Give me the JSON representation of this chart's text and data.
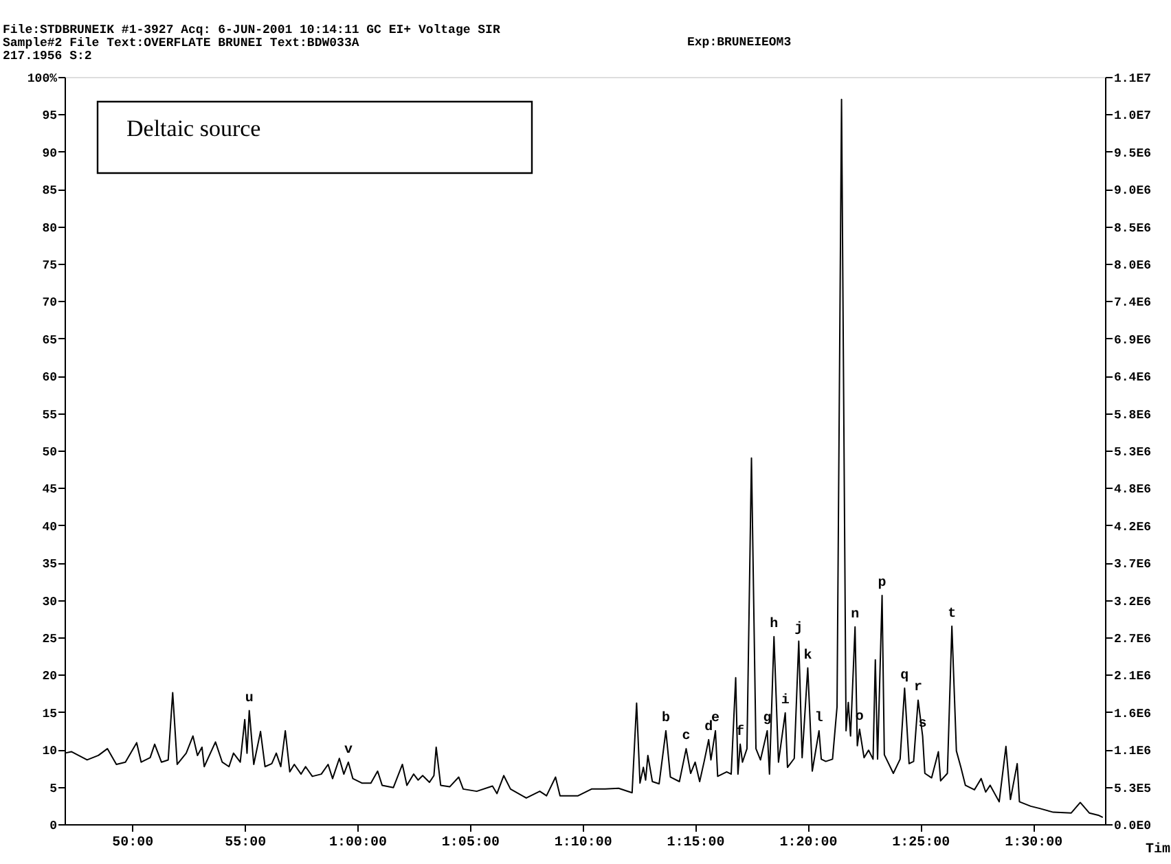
{
  "chart_data": {
    "type": "line",
    "title": "File:STDBRUNEIK #1-3927 Acq: 6-JUN-2001 10:14:11 GC EI+ Voltage SIR",
    "subtitle": "Sample#2 File Text:OVERFLATE BRUNEI Text:BDW033A",
    "xlabel": "Tim",
    "x": [
      47.0,
      47.3,
      48.0,
      48.5,
      48.9,
      49.3,
      49.7,
      50.2,
      50.4,
      50.8,
      51.0,
      51.3,
      51.6,
      51.8,
      52.0,
      52.4,
      52.7,
      52.9,
      53.1,
      53.2,
      53.7,
      54.0,
      54.3,
      54.5,
      54.8,
      55.0,
      55.1,
      55.2,
      55.4,
      55.7,
      55.9,
      56.2,
      56.4,
      56.6,
      56.8,
      57.0,
      57.2,
      57.5,
      57.7,
      58.0,
      58.4,
      58.7,
      58.9,
      59.2,
      59.4,
      59.6,
      59.8,
      60.2,
      60.6,
      60.9,
      61.1,
      61.6,
      62.0,
      62.2,
      62.5,
      62.7,
      62.9,
      63.2,
      63.4,
      63.5,
      63.7,
      64.1,
      64.5,
      64.7,
      65.3,
      66.0,
      66.2,
      66.5,
      66.8,
      67.5,
      68.1,
      68.4,
      68.8,
      69.0,
      69.8,
      70.4,
      71.0,
      71.6,
      72.2,
      72.4,
      72.55,
      72.7,
      72.8,
      72.9,
      73.1,
      73.4,
      73.7,
      73.9,
      74.3,
      74.6,
      74.8,
      75.0,
      75.2,
      75.4,
      75.6,
      75.7,
      75.9,
      76.0,
      76.4,
      76.6,
      76.8,
      76.9,
      77.0,
      77.1,
      77.3,
      77.5,
      77.7,
      77.9,
      78.2,
      78.3,
      78.5,
      78.7,
      79.0,
      79.1,
      79.4,
      79.6,
      79.75,
      80.0,
      80.2,
      80.5,
      80.6,
      80.8,
      81.1,
      81.3,
      81.5,
      81.7,
      81.8,
      81.9,
      82.1,
      82.2,
      82.3,
      82.5,
      82.7,
      82.9,
      83.0,
      83.1,
      83.3,
      83.4,
      83.8,
      84.1,
      84.3,
      84.5,
      84.7,
      84.9,
      85.1,
      85.2,
      85.5,
      85.8,
      85.9,
      86.2,
      86.4,
      86.6,
      86.8,
      87.0,
      87.4,
      87.7,
      87.9,
      88.1,
      88.5,
      88.8,
      89.0,
      89.3,
      89.4,
      89.9,
      90.3,
      90.9,
      91.7,
      92.1,
      92.5,
      92.9,
      93.1
    ],
    "series": [
      {
        "color": "#000000",
        "values": [
          9.5,
          9.7,
          8.6,
          9.2,
          10.1,
          8.0,
          8.3,
          10.9,
          8.3,
          8.9,
          10.7,
          8.3,
          8.6,
          17.6,
          8.0,
          9.5,
          11.8,
          9.2,
          10.3,
          7.7,
          11.0,
          8.3,
          7.7,
          9.5,
          8.3,
          14.0,
          9.5,
          15.2,
          8.0,
          12.4,
          7.7,
          8.1,
          9.5,
          7.7,
          12.5,
          7.0,
          8.0,
          6.7,
          7.7,
          6.4,
          6.7,
          8.0,
          6.1,
          8.8,
          6.7,
          8.3,
          6.1,
          5.5,
          5.5,
          7.1,
          5.2,
          4.9,
          8.0,
          5.2,
          6.7,
          5.9,
          6.5,
          5.6,
          6.5,
          10.3,
          5.2,
          5.0,
          6.3,
          4.7,
          4.4,
          5.1,
          4.1,
          6.5,
          4.7,
          3.5,
          4.4,
          3.8,
          6.3,
          3.8,
          3.8,
          4.7,
          4.7,
          4.8,
          4.2,
          16.2,
          5.5,
          7.6,
          5.9,
          9.2,
          5.7,
          5.4,
          12.5,
          6.3,
          5.7,
          10.1,
          6.8,
          8.3,
          5.7,
          8.4,
          11.3,
          8.6,
          12.5,
          6.4,
          7.0,
          6.7,
          19.6,
          6.7,
          10.7,
          8.3,
          10.1,
          49.0,
          10.1,
          8.6,
          12.5,
          6.7,
          25.1,
          8.3,
          14.9,
          7.6,
          8.8,
          24.5,
          8.9,
          20.9,
          7.1,
          12.5,
          8.7,
          8.4,
          8.7,
          15.7,
          97.0,
          12.5,
          16.3,
          11.8,
          26.4,
          10.5,
          12.7,
          8.9,
          9.9,
          8.7,
          22.0,
          8.7,
          30.6,
          9.3,
          6.8,
          8.7,
          18.2,
          8.1,
          8.4,
          16.6,
          11.8,
          6.8,
          6.2,
          9.7,
          5.8,
          6.8,
          26.5,
          9.8,
          7.6,
          5.2,
          4.6,
          6.1,
          4.3,
          5.2,
          3.0,
          10.4,
          3.3,
          8.1,
          3.0,
          2.4,
          2.1,
          1.6,
          1.5,
          2.9,
          1.5,
          1.2,
          0.9
        ]
      }
    ],
    "xlim": [
      47.0,
      93.2
    ],
    "xticks": [
      {
        "value": 50,
        "label": "50:00"
      },
      {
        "value": 55,
        "label": "55:00"
      },
      {
        "value": 60,
        "label": "1:00:00"
      },
      {
        "value": 65,
        "label": "1:05:00"
      },
      {
        "value": 70,
        "label": "1:10:00"
      },
      {
        "value": 75,
        "label": "1:15:00"
      },
      {
        "value": 80,
        "label": "1:20:00"
      },
      {
        "value": 85,
        "label": "1:25:00"
      },
      {
        "value": 90,
        "label": "1:30:00"
      }
    ],
    "ylim": [
      0,
      100
    ],
    "yticks": [
      0,
      5,
      10,
      15,
      20,
      25,
      30,
      35,
      40,
      45,
      50,
      55,
      60,
      65,
      70,
      75,
      80,
      85,
      90,
      95,
      {
        "value": 100,
        "label": "100%"
      }
    ],
    "y2lim": [
      0,
      10600000
    ],
    "y2ticks": [
      {
        "value": 0,
        "label": "0.0E0"
      },
      {
        "value": 530000,
        "label": "5.3E5"
      },
      {
        "value": 1060000,
        "label": "1.1E6"
      },
      {
        "value": 1590000,
        "label": "1.6E6"
      },
      {
        "value": 2120000,
        "label": "2.1E6"
      },
      {
        "value": 2650000,
        "label": "2.7E6"
      },
      {
        "value": 3180000,
        "label": "3.2E6"
      },
      {
        "value": 3710000,
        "label": "3.7E6"
      },
      {
        "value": 4240000,
        "label": "4.2E6"
      },
      {
        "value": 4770000,
        "label": "4.8E6"
      },
      {
        "value": 5300000,
        "label": "5.3E6"
      },
      {
        "value": 5830000,
        "label": "5.8E6"
      },
      {
        "value": 6360000,
        "label": "6.4E6"
      },
      {
        "value": 6890000,
        "label": "6.9E6"
      },
      {
        "value": 7420000,
        "label": "7.4E6"
      },
      {
        "value": 7950000,
        "label": "8.0E6"
      },
      {
        "value": 8480000,
        "label": "8.5E6"
      },
      {
        "value": 9010000,
        "label": "9.0E6"
      },
      {
        "value": 9540000,
        "label": "9.5E6"
      },
      {
        "value": 10070000,
        "label": "1.0E7"
      },
      {
        "value": 10600000,
        "label": "1.1E7"
      }
    ],
    "annotations": [
      "Exp:BRUNEIEOM3",
      "217.1956 S:2",
      "Deltaic source",
      {
        "text": "u",
        "x": 55.2,
        "y": 15.2
      },
      {
        "text": "v",
        "x": 59.6,
        "y": 8.3
      },
      {
        "text": "b",
        "x": 73.7,
        "y": 12.5
      },
      {
        "text": "c",
        "x": 74.6,
        "y": 10.1
      },
      {
        "text": "d",
        "x": 75.6,
        "y": 11.3
      },
      {
        "text": "e",
        "x": 75.9,
        "y": 12.5
      },
      {
        "text": "f",
        "x": 77.0,
        "y": 10.7
      },
      {
        "text": "g",
        "x": 78.2,
        "y": 12.5
      },
      {
        "text": "h",
        "x": 78.5,
        "y": 25.1
      },
      {
        "text": "i",
        "x": 79.0,
        "y": 14.9
      },
      {
        "text": "j",
        "x": 79.6,
        "y": 24.5
      },
      {
        "text": "k",
        "x": 80.0,
        "y": 20.9
      },
      {
        "text": "l",
        "x": 80.5,
        "y": 12.5
      },
      {
        "text": "n",
        "x": 82.1,
        "y": 26.4
      },
      {
        "text": "o",
        "x": 82.3,
        "y": 12.7
      },
      {
        "text": "p",
        "x": 83.3,
        "y": 30.6
      },
      {
        "text": "q",
        "x": 84.3,
        "y": 18.2
      },
      {
        "text": "r",
        "x": 84.9,
        "y": 16.6
      },
      {
        "text": "s",
        "x": 85.1,
        "y": 11.8
      },
      {
        "text": "t",
        "x": 86.4,
        "y": 26.5
      }
    ]
  }
}
